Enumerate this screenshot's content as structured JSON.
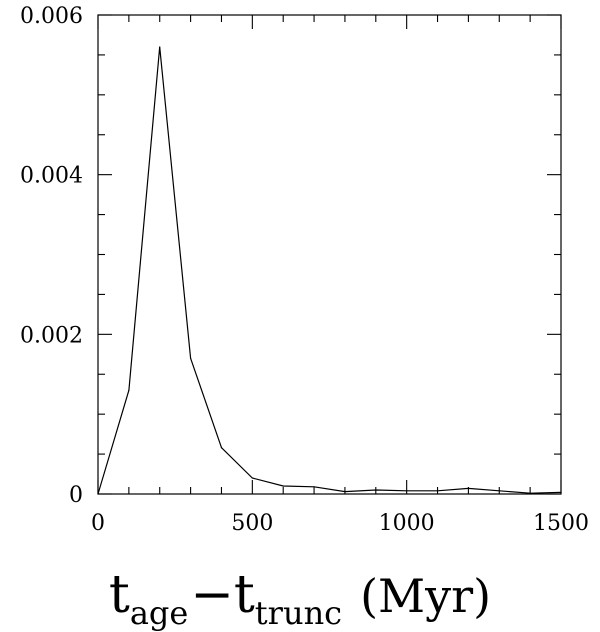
{
  "chart_data": {
    "type": "line",
    "title": "",
    "xlabel": "t_age − t_trunc (Myr)",
    "xlabel_parts": {
      "main1": "t",
      "sub1": "age",
      "minus": "−",
      "main2": "t",
      "sub2": "trunc",
      "unit": "(Myr)"
    },
    "ylabel": "",
    "xlim": [
      0,
      1500
    ],
    "ylim": [
      0,
      0.006
    ],
    "x_ticks": [
      0,
      500,
      1000,
      1500
    ],
    "x_tick_labels": [
      "0",
      "500",
      "1000",
      "1500"
    ],
    "x_minor_step": 100,
    "y_ticks": [
      0,
      0.002,
      0.004,
      0.006
    ],
    "y_tick_labels": [
      "0",
      "0.002",
      "0.004",
      "0.006"
    ],
    "y_minor_step": 0.0005,
    "grid": false,
    "series": [
      {
        "x": [
          0,
          100,
          200,
          300,
          400,
          500,
          600,
          700,
          800,
          900,
          1000,
          1100,
          1200,
          1300,
          1400,
          1500
        ],
        "y": [
          0,
          0.0013,
          0.0056,
          0.0017,
          0.00058,
          0.0002,
          0.0001,
          9e-05,
          3e-05,
          5e-05,
          4e-05,
          4e-05,
          7e-05,
          4e-05,
          1e-05,
          2e-05
        ]
      }
    ],
    "colors": {
      "line": "#000000",
      "axes": "#000000"
    }
  }
}
